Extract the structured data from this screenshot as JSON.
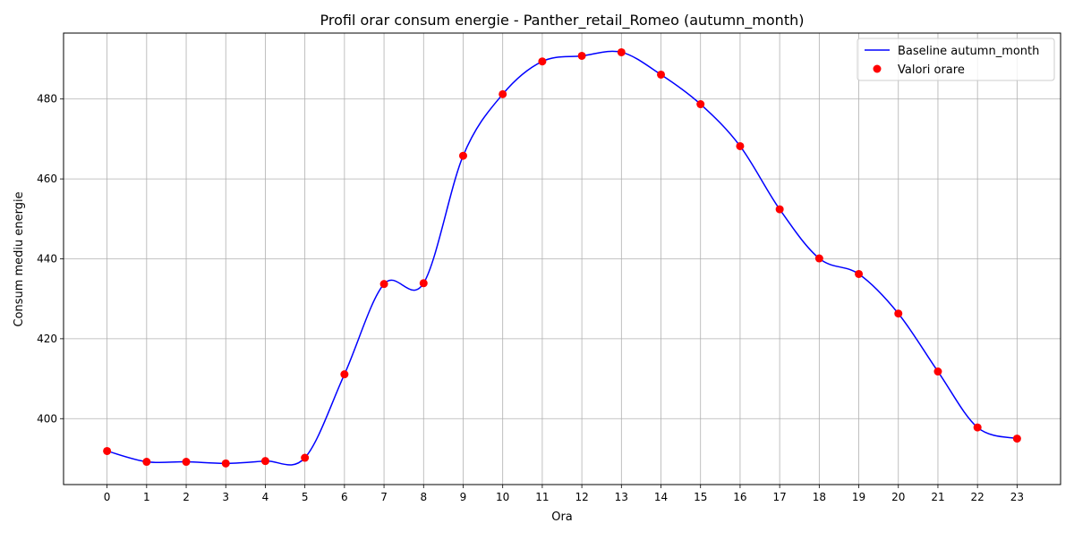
{
  "chart_data": {
    "type": "line",
    "title": "Profil orar consum energie - Panther_retail_Romeo (autumn_month)",
    "xlabel": "Ora",
    "ylabel": "Consum mediu energie",
    "xlim": [
      -1.1,
      24.1
    ],
    "ylim": [
      383.5,
      496.5
    ],
    "grid": true,
    "legend_position": "upper-right",
    "x": [
      0,
      1,
      2,
      3,
      4,
      5,
      6,
      7,
      8,
      9,
      10,
      11,
      12,
      13,
      14,
      15,
      16,
      17,
      18,
      19,
      20,
      21,
      22,
      23
    ],
    "x_tick_labels": [
      "0",
      "1",
      "2",
      "3",
      "4",
      "5",
      "6",
      "7",
      "8",
      "9",
      "10",
      "11",
      "12",
      "13",
      "14",
      "15",
      "16",
      "17",
      "18",
      "19",
      "20",
      "21",
      "22",
      "23"
    ],
    "y_ticks": [
      400,
      420,
      440,
      460,
      480
    ],
    "y_tick_labels": [
      "400",
      "420",
      "440",
      "460",
      "480"
    ],
    "series": [
      {
        "name": "Baseline autumn_month",
        "kind": "smooth-line",
        "color": "#0000ff",
        "values": [
          391.9,
          389.2,
          389.2,
          388.8,
          389.4,
          390.2,
          411.1,
          433.7,
          433.9,
          465.8,
          481.2,
          489.4,
          490.8,
          491.7,
          486.1,
          478.7,
          468.2,
          452.4,
          440.1,
          436.2,
          426.3,
          411.8,
          397.8,
          395.0
        ]
      },
      {
        "name": "Valori orare",
        "kind": "scatter",
        "color": "#ff0000",
        "values": [
          391.9,
          389.2,
          389.2,
          388.8,
          389.4,
          390.2,
          411.1,
          433.7,
          433.9,
          465.8,
          481.2,
          489.4,
          490.8,
          491.7,
          486.1,
          478.7,
          468.2,
          452.4,
          440.1,
          436.2,
          426.3,
          411.8,
          397.8,
          395.0
        ]
      }
    ]
  }
}
